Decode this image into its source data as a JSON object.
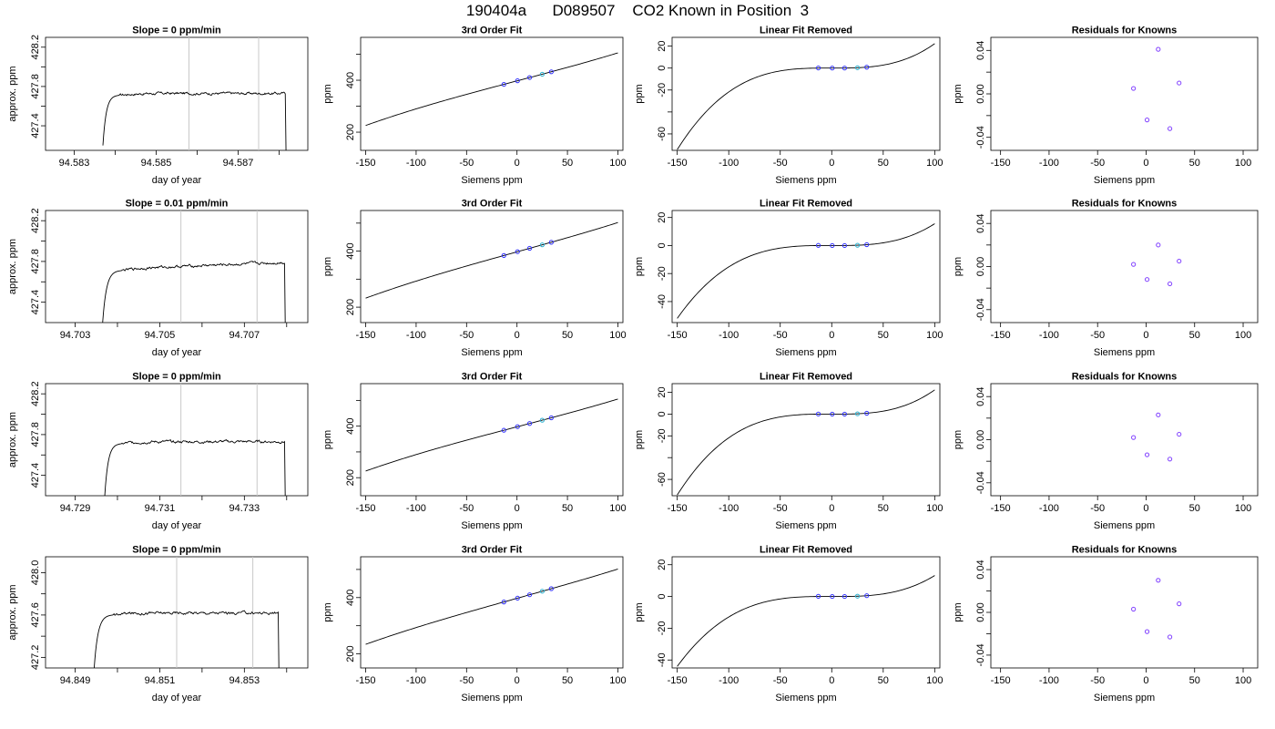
{
  "page": {
    "title": "190404a      D089507    CO2 Known in Position  3"
  },
  "chart_data": [
    {
      "type": "line",
      "panel": "row1-col1",
      "title": "Slope =  0  ppm/min",
      "xlabel": "day of year",
      "ylabel": "approx. ppm",
      "xlim": [
        94.5823,
        94.5887
      ],
      "ylim": [
        427.15,
        428.3
      ],
      "xticks": [
        94.583,
        94.584,
        94.585,
        94.586,
        94.587,
        94.588
      ],
      "xticklabels": [
        "94.583",
        "",
        "94.585",
        "",
        "94.587",
        ""
      ],
      "yticks": [
        427.4,
        427.6,
        427.8,
        428.0,
        428.2
      ],
      "yticklabels": [
        "427.4",
        "",
        "427.8",
        "",
        "428.2"
      ],
      "vlines": [
        94.5858,
        94.5875
      ],
      "vline_color": "#c8c8c8",
      "trace": {
        "start": 94.5837,
        "rise_end": 94.5841,
        "end": 94.58815,
        "baseline": 427.2,
        "level": 427.73,
        "noise": 0.012
      }
    },
    {
      "type": "line",
      "panel": "row1-col2",
      "title": "3rd Order Fit",
      "xlabel": "Siemens ppm",
      "ylabel": "ppm",
      "xlim": [
        -155,
        105
      ],
      "ylim": [
        130,
        565
      ],
      "xticks": [
        -150,
        -100,
        -50,
        0,
        50,
        100
      ],
      "xticklabels": [
        "-150",
        "-100",
        "-50",
        "0",
        "50",
        "100"
      ],
      "yticks": [
        200,
        300,
        400,
        500
      ],
      "yticklabels": [
        "200",
        "",
        "400",
        ""
      ],
      "curve": {
        "x_range": [
          -150,
          100
        ],
        "poly": [
          397.44,
          1.025,
          0,
          5.3e-06
        ]
      },
      "points": [
        {
          "x": -13,
          "y": 384.1,
          "color": "#3030ff"
        },
        {
          "x": 0.5,
          "y": 398.0,
          "color": "#3030ff"
        },
        {
          "x": 12.5,
          "y": 410.3,
          "color": "#3030ff"
        },
        {
          "x": 25,
          "y": 423.1,
          "color": "#28b0d0"
        },
        {
          "x": 34,
          "y": 432.4,
          "color": "#3030ff"
        }
      ]
    },
    {
      "type": "line",
      "panel": "row1-col3",
      "title": "Linear Fit Removed",
      "xlabel": "Siemens ppm",
      "ylabel": "ppm",
      "xlim": [
        -155,
        105
      ],
      "ylim": [
        -75,
        28
      ],
      "xticks": [
        -150,
        -100,
        -50,
        0,
        50,
        100
      ],
      "xticklabels": [
        "-150",
        "-100",
        "-50",
        "0",
        "50",
        "100"
      ],
      "yticks": [
        -60,
        -40,
        -20,
        0,
        20
      ],
      "yticklabels": [
        "-60",
        "",
        "-20",
        "0",
        "20"
      ],
      "curve": {
        "x_range": [
          -150,
          100
        ],
        "poly": [
          0,
          -0.00255,
          2.55e-05,
          2.23e-05
        ]
      },
      "points": [
        {
          "x": -13,
          "y": 0.1,
          "color": "#3030ff"
        },
        {
          "x": 0.5,
          "y": 0,
          "color": "#3030ff"
        },
        {
          "x": 12.5,
          "y": 0,
          "color": "#3030ff"
        },
        {
          "x": 25,
          "y": 0.3,
          "color": "#28b0d0"
        },
        {
          "x": 34,
          "y": 0.8,
          "color": "#3030ff"
        }
      ]
    },
    {
      "type": "scatter",
      "panel": "row1-col4",
      "title": "Residuals for Knowns",
      "xlabel": "Siemens ppm",
      "ylabel": "ppm",
      "xlim": [
        -160,
        115
      ],
      "ylim": [
        -0.052,
        0.052
      ],
      "xticks": [
        -150,
        -100,
        -50,
        0,
        50,
        100
      ],
      "xticklabels": [
        "-150",
        "-100",
        "-50",
        "0",
        "50",
        "100"
      ],
      "yticks": [
        -0.04,
        -0.02,
        0,
        0.02,
        0.04
      ],
      "yticklabels": [
        "-0.04",
        "",
        "0.00",
        "",
        "0.04"
      ],
      "points": [
        {
          "x": -13,
          "y": 0.005,
          "color": "#8040ff"
        },
        {
          "x": 1,
          "y": -0.024,
          "color": "#8040ff"
        },
        {
          "x": 12.5,
          "y": 0.041,
          "color": "#8040ff"
        },
        {
          "x": 24.5,
          "y": -0.032,
          "color": "#8040ff"
        },
        {
          "x": 34,
          "y": 0.01,
          "color": "#8040ff"
        }
      ]
    },
    {
      "type": "line",
      "panel": "row2-col1",
      "title": "Slope =  0.01  ppm/min",
      "xlabel": "day of year",
      "ylabel": "approx. ppm",
      "xlim": [
        94.7023,
        94.7085
      ],
      "ylim": [
        427.2,
        428.3
      ],
      "xticks": [
        94.703,
        94.704,
        94.705,
        94.706,
        94.707,
        94.708
      ],
      "xticklabels": [
        "94.703",
        "",
        "94.705",
        "",
        "94.707",
        ""
      ],
      "yticks": [
        427.4,
        427.6,
        427.8,
        428.0,
        428.2
      ],
      "yticklabels": [
        "427.4",
        "",
        "427.8",
        "",
        "428.2"
      ],
      "vlines": [
        94.7055,
        94.7073
      ],
      "vline_color": "#c8c8c8",
      "trace": {
        "start": 94.70365,
        "rise_end": 94.7041,
        "end": 94.70795,
        "baseline": 427.2,
        "level": 427.73,
        "slope_rise": 0.06,
        "noise": 0.012
      }
    },
    {
      "type": "line",
      "panel": "row2-col2",
      "title": "3rd Order Fit",
      "xlabel": "Siemens ppm",
      "ylabel": "ppm",
      "xlim": [
        -155,
        105
      ],
      "ylim": [
        145,
        545
      ],
      "xticks": [
        -150,
        -100,
        -50,
        0,
        50,
        100
      ],
      "xticklabels": [
        "-150",
        "-100",
        "-50",
        "0",
        "50",
        "100"
      ],
      "yticks": [
        200,
        300,
        400,
        500
      ],
      "yticklabels": [
        "200",
        "",
        "400",
        ""
      ],
      "curve": {
        "x_range": [
          -150,
          100
        ],
        "poly": [
          397.44,
          1.0,
          0,
          4.5e-06
        ]
      },
      "points": [
        {
          "x": -13,
          "y": 384.4,
          "color": "#3030ff"
        },
        {
          "x": 0.5,
          "y": 398.0,
          "color": "#3030ff"
        },
        {
          "x": 12.5,
          "y": 410.0,
          "color": "#3030ff"
        },
        {
          "x": 25,
          "y": 422.5,
          "color": "#28b0d0"
        },
        {
          "x": 34,
          "y": 431.6,
          "color": "#3030ff"
        }
      ]
    },
    {
      "type": "line",
      "panel": "row2-col3",
      "title": "Linear Fit Removed",
      "xlabel": "Siemens ppm",
      "ylabel": "ppm",
      "xlim": [
        -155,
        105
      ],
      "ylim": [
        -55,
        25
      ],
      "xticks": [
        -150,
        -100,
        -50,
        0,
        50,
        100
      ],
      "xticklabels": [
        "-150",
        "-100",
        "-50",
        "0",
        "50",
        "100"
      ],
      "yticks": [
        -40,
        -20,
        0,
        20
      ],
      "yticklabels": [
        "-40",
        "-20",
        "0",
        "20"
      ],
      "curve": {
        "x_range": [
          -150,
          100
        ],
        "poly": [
          0,
          -0.0017,
          1.7e-05,
          1.56e-05
        ]
      },
      "points": [
        {
          "x": -13,
          "y": 0.1,
          "color": "#3030ff"
        },
        {
          "x": 0.5,
          "y": 0,
          "color": "#3030ff"
        },
        {
          "x": 12.5,
          "y": 0,
          "color": "#3030ff"
        },
        {
          "x": 25,
          "y": 0.2,
          "color": "#28b0d0"
        },
        {
          "x": 34,
          "y": 0.6,
          "color": "#3030ff"
        }
      ]
    },
    {
      "type": "scatter",
      "panel": "row2-col4",
      "title": "Residuals for Knowns",
      "xlabel": "Siemens ppm",
      "ylabel": "ppm",
      "xlim": [
        -160,
        115
      ],
      "ylim": [
        -0.052,
        0.052
      ],
      "xticks": [
        -150,
        -100,
        -50,
        0,
        50,
        100
      ],
      "xticklabels": [
        "-150",
        "-100",
        "-50",
        "0",
        "50",
        "100"
      ],
      "yticks": [
        -0.04,
        -0.02,
        0,
        0.02,
        0.04
      ],
      "yticklabels": [
        "-0.04",
        "",
        "0.00",
        "",
        "0.04"
      ],
      "points": [
        {
          "x": -13,
          "y": 0.002,
          "color": "#8040ff"
        },
        {
          "x": 1,
          "y": -0.012,
          "color": "#8040ff"
        },
        {
          "x": 12.5,
          "y": 0.02,
          "color": "#8040ff"
        },
        {
          "x": 24.5,
          "y": -0.016,
          "color": "#8040ff"
        },
        {
          "x": 34,
          "y": 0.005,
          "color": "#8040ff"
        }
      ]
    },
    {
      "type": "line",
      "panel": "row3-col1",
      "title": "Slope =  0  ppm/min",
      "xlabel": "day of year",
      "ylabel": "approx. ppm",
      "xlim": [
        94.7283,
        94.7345
      ],
      "ylim": [
        427.2,
        428.3
      ],
      "xticks": [
        94.729,
        94.73,
        94.731,
        94.732,
        94.733,
        94.734
      ],
      "xticklabels": [
        "94.729",
        "",
        "94.731",
        "",
        "94.733",
        ""
      ],
      "yticks": [
        427.4,
        427.6,
        427.8,
        428.0,
        428.2
      ],
      "yticklabels": [
        "427.4",
        "",
        "427.8",
        "",
        "428.2"
      ],
      "vlines": [
        94.7315,
        94.7333
      ],
      "vline_color": "#c8c8c8",
      "trace": {
        "start": 94.7297,
        "rise_end": 94.7301,
        "end": 94.73395,
        "baseline": 427.2,
        "level": 427.73,
        "noise": 0.012
      }
    },
    {
      "type": "line",
      "panel": "row3-col2",
      "title": "3rd Order Fit",
      "xlabel": "Siemens ppm",
      "ylabel": "ppm",
      "xlim": [
        -155,
        105
      ],
      "ylim": [
        130,
        565
      ],
      "xticks": [
        -150,
        -100,
        -50,
        0,
        50,
        100
      ],
      "xticklabels": [
        "-150",
        "-100",
        "-50",
        "0",
        "50",
        "100"
      ],
      "yticks": [
        200,
        300,
        400,
        500
      ],
      "yticklabels": [
        "200",
        "",
        "400",
        ""
      ],
      "curve": {
        "x_range": [
          -150,
          100
        ],
        "poly": [
          397.44,
          1.025,
          0,
          5.3e-06
        ]
      },
      "points": [
        {
          "x": -13,
          "y": 384.1,
          "color": "#3030ff"
        },
        {
          "x": 0.5,
          "y": 398.0,
          "color": "#3030ff"
        },
        {
          "x": 12.5,
          "y": 410.3,
          "color": "#3030ff"
        },
        {
          "x": 25,
          "y": 423.1,
          "color": "#28b0d0"
        },
        {
          "x": 34,
          "y": 432.4,
          "color": "#3030ff"
        }
      ]
    },
    {
      "type": "line",
      "panel": "row3-col3",
      "title": "Linear Fit Removed",
      "xlabel": "Siemens ppm",
      "ylabel": "ppm",
      "xlim": [
        -155,
        105
      ],
      "ylim": [
        -75,
        28
      ],
      "xticks": [
        -150,
        -100,
        -50,
        0,
        50,
        100
      ],
      "xticklabels": [
        "-150",
        "-100",
        "-50",
        "0",
        "50",
        "100"
      ],
      "yticks": [
        -60,
        -40,
        -20,
        0,
        20
      ],
      "yticklabels": [
        "-60",
        "",
        "-20",
        "0",
        "20"
      ],
      "curve": {
        "x_range": [
          -150,
          100
        ],
        "poly": [
          0,
          -0.00255,
          2.55e-05,
          2.23e-05
        ]
      },
      "points": [
        {
          "x": -13,
          "y": 0.1,
          "color": "#3030ff"
        },
        {
          "x": 0.5,
          "y": 0,
          "color": "#3030ff"
        },
        {
          "x": 12.5,
          "y": 0,
          "color": "#3030ff"
        },
        {
          "x": 25,
          "y": 0.3,
          "color": "#28b0d0"
        },
        {
          "x": 34,
          "y": 0.8,
          "color": "#3030ff"
        }
      ]
    },
    {
      "type": "scatter",
      "panel": "row3-col4",
      "title": "Residuals for Knowns",
      "xlabel": "Siemens ppm",
      "ylabel": "ppm",
      "xlim": [
        -160,
        115
      ],
      "ylim": [
        -0.052,
        0.052
      ],
      "xticks": [
        -150,
        -100,
        -50,
        0,
        50,
        100
      ],
      "xticklabels": [
        "-150",
        "-100",
        "-50",
        "0",
        "50",
        "100"
      ],
      "yticks": [
        -0.04,
        -0.02,
        0,
        0.02,
        0.04
      ],
      "yticklabels": [
        "-0.04",
        "",
        "0.00",
        "",
        "0.04"
      ],
      "points": [
        {
          "x": -13,
          "y": 0.002,
          "color": "#8040ff"
        },
        {
          "x": 1,
          "y": -0.014,
          "color": "#8040ff"
        },
        {
          "x": 12.5,
          "y": 0.023,
          "color": "#8040ff"
        },
        {
          "x": 24.5,
          "y": -0.018,
          "color": "#8040ff"
        },
        {
          "x": 34,
          "y": 0.005,
          "color": "#8040ff"
        }
      ]
    },
    {
      "type": "line",
      "panel": "row4-col1",
      "title": "Slope =  0  ppm/min",
      "xlabel": "day of year",
      "ylabel": "approx. ppm",
      "xlim": [
        94.8483,
        94.8545
      ],
      "ylim": [
        427.1,
        428.15
      ],
      "xticks": [
        94.849,
        94.85,
        94.851,
        94.852,
        94.853,
        94.854
      ],
      "xticklabels": [
        "94.849",
        "",
        "94.851",
        "",
        "94.853",
        ""
      ],
      "yticks": [
        427.2,
        427.4,
        427.6,
        427.8,
        428.0
      ],
      "yticklabels": [
        "427.2",
        "",
        "427.6",
        "",
        "428.0"
      ],
      "vlines": [
        94.8514,
        94.8532
      ],
      "vline_color": "#c8c8c8",
      "trace": {
        "start": 94.84945,
        "rise_end": 94.8499,
        "end": 94.8538,
        "baseline": 427.1,
        "level": 427.62,
        "noise": 0.012
      }
    },
    {
      "type": "line",
      "panel": "row4-col2",
      "title": "3rd Order Fit",
      "xlabel": "Siemens ppm",
      "ylabel": "ppm",
      "xlim": [
        -155,
        105
      ],
      "ylim": [
        150,
        545
      ],
      "xticks": [
        -150,
        -100,
        -50,
        0,
        50,
        100
      ],
      "xticklabels": [
        "-150",
        "-100",
        "-50",
        "0",
        "50",
        "100"
      ],
      "yticks": [
        200,
        300,
        400,
        500
      ],
      "yticklabels": [
        "200",
        "",
        "400",
        ""
      ],
      "curve": {
        "x_range": [
          -150,
          100
        ],
        "poly": [
          397.44,
          1.0,
          0,
          4e-06
        ]
      },
      "points": [
        {
          "x": -13,
          "y": 384.4,
          "color": "#3030ff"
        },
        {
          "x": 0.5,
          "y": 398.0,
          "color": "#3030ff"
        },
        {
          "x": 12.5,
          "y": 410.0,
          "color": "#3030ff"
        },
        {
          "x": 25,
          "y": 422.5,
          "color": "#28b0d0"
        },
        {
          "x": 34,
          "y": 431.6,
          "color": "#3030ff"
        }
      ]
    },
    {
      "type": "line",
      "panel": "row4-col3",
      "title": "Linear Fit Removed",
      "xlabel": "Siemens ppm",
      "ylabel": "ppm",
      "xlim": [
        -155,
        105
      ],
      "ylim": [
        -45,
        25
      ],
      "xticks": [
        -150,
        -100,
        -50,
        0,
        50,
        100
      ],
      "xticklabels": [
        "-150",
        "-100",
        "-50",
        "0",
        "50",
        "100"
      ],
      "yticks": [
        -40,
        -20,
        0,
        20
      ],
      "yticklabels": [
        "-40",
        "-20",
        "0",
        "20"
      ],
      "curve": {
        "x_range": [
          -150,
          100
        ],
        "poly": [
          0,
          -0.0014,
          1.4e-05,
          1.32e-05
        ]
      },
      "points": [
        {
          "x": -13,
          "y": 0.1,
          "color": "#3030ff"
        },
        {
          "x": 0.5,
          "y": 0,
          "color": "#3030ff"
        },
        {
          "x": 12.5,
          "y": 0,
          "color": "#3030ff"
        },
        {
          "x": 25,
          "y": 0.2,
          "color": "#28b0d0"
        },
        {
          "x": 34,
          "y": 0.5,
          "color": "#3030ff"
        }
      ]
    },
    {
      "type": "scatter",
      "panel": "row4-col4",
      "title": "Residuals for Knowns",
      "xlabel": "Siemens ppm",
      "ylabel": "ppm",
      "xlim": [
        -160,
        115
      ],
      "ylim": [
        -0.052,
        0.052
      ],
      "xticks": [
        -150,
        -100,
        -50,
        0,
        50,
        100
      ],
      "xticklabels": [
        "-150",
        "-100",
        "-50",
        "0",
        "50",
        "100"
      ],
      "yticks": [
        -0.04,
        -0.02,
        0,
        0.02,
        0.04
      ],
      "yticklabels": [
        "-0.04",
        "",
        "0.00",
        "",
        "0.04"
      ],
      "points": [
        {
          "x": -13,
          "y": 0.003,
          "color": "#8040ff"
        },
        {
          "x": 1,
          "y": -0.018,
          "color": "#8040ff"
        },
        {
          "x": 12.5,
          "y": 0.03,
          "color": "#8040ff"
        },
        {
          "x": 24.5,
          "y": -0.023,
          "color": "#8040ff"
        },
        {
          "x": 34,
          "y": 0.008,
          "color": "#8040ff"
        }
      ]
    }
  ]
}
